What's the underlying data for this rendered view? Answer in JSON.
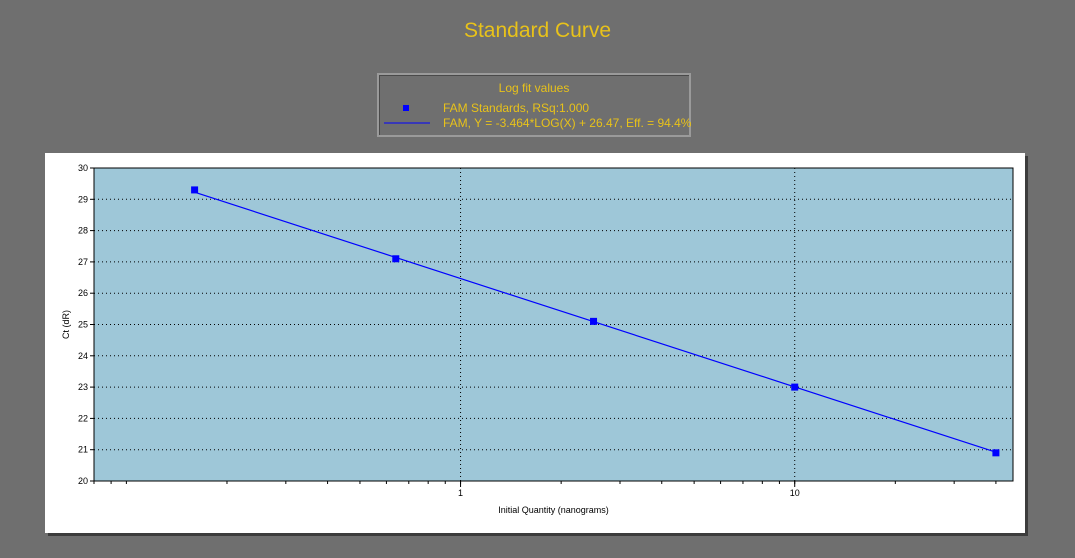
{
  "chart_data": {
    "type": "scatter",
    "title": "Standard Curve",
    "xlabel": "Initial Quantity (nanograms)",
    "ylabel": "Ct (dR)",
    "xscale": "log",
    "xlim": [
      0.08,
      45
    ],
    "ylim": [
      20,
      30
    ],
    "x_major_ticks": [
      1,
      10
    ],
    "y_ticks": [
      20,
      21,
      22,
      23,
      24,
      25,
      26,
      27,
      28,
      29,
      30
    ],
    "grid": true,
    "legend": {
      "title": "Log fit values",
      "placement": "top-center",
      "entries": [
        "FAM Standards, RSq:1.000",
        "FAM, Y = -3.464*LOG(X) + 26.47, Eff. = 94.4%"
      ]
    },
    "series": [
      {
        "name": "FAM Standards, RSq:1.000",
        "marker": "square",
        "color": "#0000ff",
        "points": [
          {
            "x": 0.16,
            "y": 29.3
          },
          {
            "x": 0.64,
            "y": 27.1
          },
          {
            "x": 2.5,
            "y": 25.1
          },
          {
            "x": 10,
            "y": 23.0
          },
          {
            "x": 40,
            "y": 20.9
          }
        ]
      },
      {
        "name": "FAM, Y = -3.464*LOG(X) + 26.47, Eff. = 94.4%",
        "kind": "fit-line",
        "color": "#0000ff",
        "slope": -3.464,
        "intercept": 26.47
      }
    ]
  },
  "colors": {
    "background": "#6f6f6f",
    "plot_area": "#9ec7d8",
    "title_text": "#e8c21a",
    "series": "#0000ff"
  }
}
